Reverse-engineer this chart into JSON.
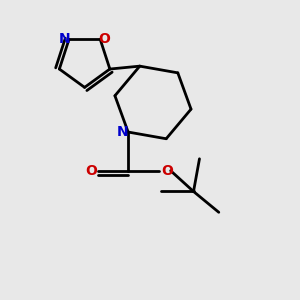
{
  "background_color": "#e8e8e8",
  "bond_color": "#000000",
  "N_color": "#0000cc",
  "O_color": "#cc0000",
  "line_width": 2.0,
  "figsize": [
    3.0,
    3.0
  ],
  "dpi": 100,
  "xlim": [
    0,
    10
  ],
  "ylim": [
    0,
    10
  ]
}
